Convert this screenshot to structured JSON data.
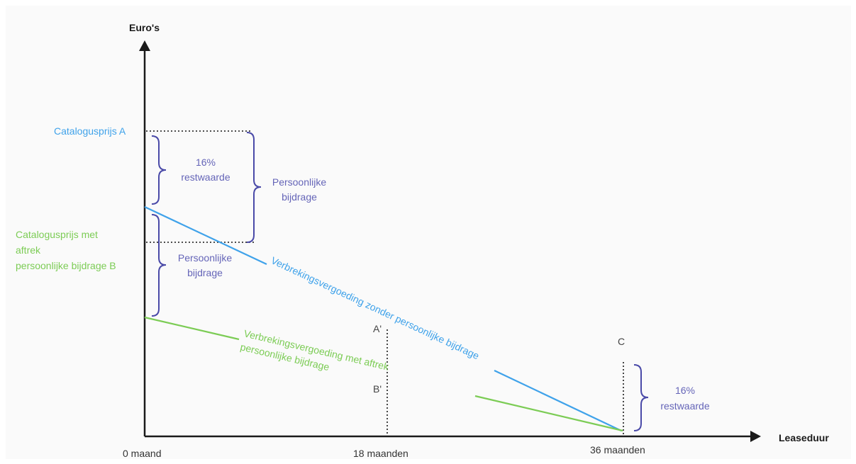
{
  "axes": {
    "y_title": "Euro's",
    "x_title": "Leaseduur",
    "ticks": [
      "0 maand",
      "18 maanden",
      "36 maanden"
    ]
  },
  "labels": {
    "catalogusprijs_a": "Catalogusprijs A",
    "catalogusprijs_b": [
      "Catalogusprijs met",
      "aftrek",
      "persoonlijke bijdrage B"
    ],
    "restwaarde_left": [
      "16%",
      "restwaarde"
    ],
    "persoonlijke_top": [
      "Persoonlijke",
      "bijdrage"
    ],
    "persoonlijke_left": [
      "Persoonlijke",
      "bijdrage"
    ],
    "line_zonder": "Verbrekingsvergoeding zonder persoonlijke bijdrage",
    "line_met": [
      "Verbrekingsvergoeding met aftrek",
      "persoonlijke bijdrage"
    ],
    "a_prime": "A'",
    "b_prime": "B'",
    "c": "C",
    "restwaarde_right": [
      "16%",
      "restwaarde"
    ]
  },
  "colors": {
    "axis": "#1a1a1a",
    "blue": "#3fa2ea",
    "green": "#7ccc55",
    "purple": "#4a4aa8",
    "label_purple": "#6565b8",
    "dotted": "#333333",
    "gray_text": "#444444"
  }
}
